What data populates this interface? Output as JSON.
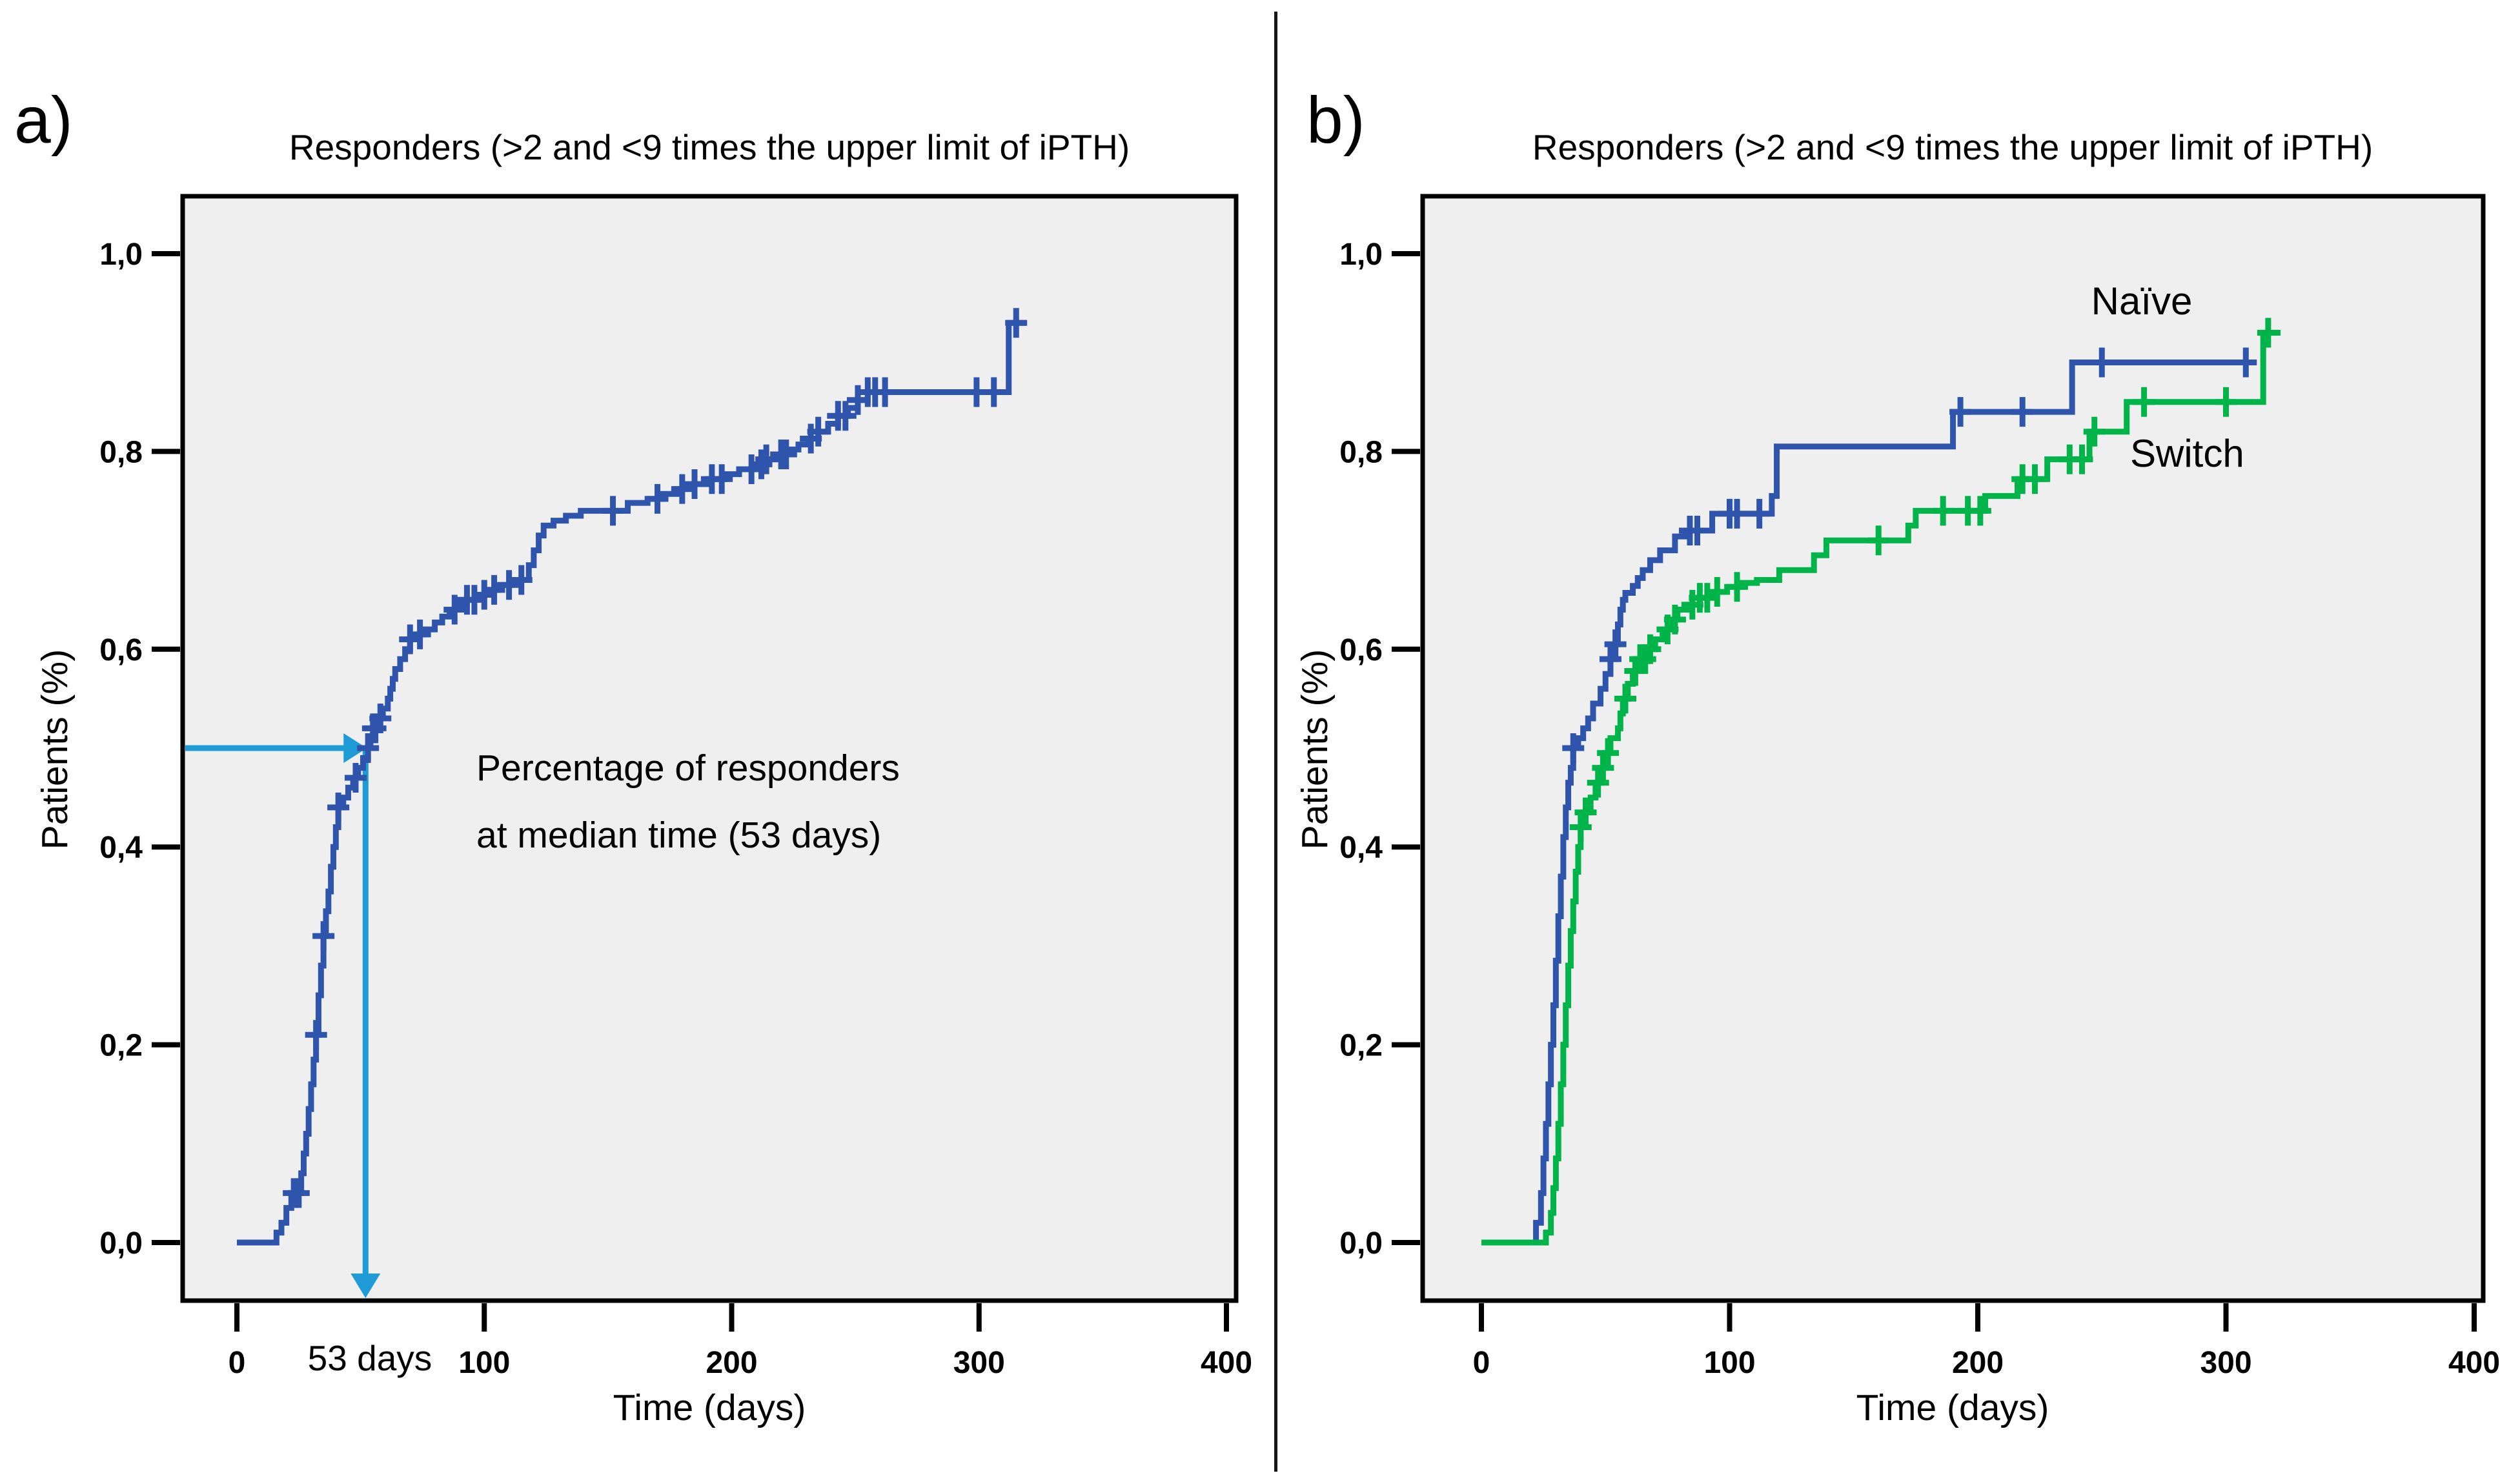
{
  "chart_data": [
    {
      "panel_label": "a)",
      "type": "line",
      "subtype": "kaplan-meier-cumulative-step",
      "title": "Responders (>2 and <9 times the upper limit of iPTH)",
      "xlabel": "Time (days)",
      "ylabel": "Patients (%)",
      "xlim": [
        0,
        400
      ],
      "ylim": [
        0.0,
        1.0
      ],
      "x_tick_values": [
        0,
        100,
        200,
        300,
        400
      ],
      "x_tick_labels": [
        "0",
        "100",
        "200",
        "300",
        "400"
      ],
      "y_tick_values": [
        0.0,
        0.2,
        0.4,
        0.6,
        0.8,
        1.0
      ],
      "y_tick_labels": [
        "0,0",
        "0,2",
        "0,4",
        "0,6",
        "0,8",
        "1,0"
      ],
      "grid": false,
      "legend_position": "none",
      "plot_bg": "#EFEFEF",
      "box_color": "#000000",
      "series": [
        {
          "id": "responders",
          "color": "#2E55AB",
          "steps": [
            [
              0,
              0
            ],
            [
              16,
              0.01
            ],
            [
              18,
              0.02
            ],
            [
              20,
              0.035
            ],
            [
              22,
              0.05
            ],
            [
              26,
              0.07
            ],
            [
              27,
              0.09
            ],
            [
              28,
              0.11
            ],
            [
              29,
              0.135
            ],
            [
              30,
              0.16
            ],
            [
              31,
              0.185
            ],
            [
              32,
              0.21
            ],
            [
              33,
              0.25
            ],
            [
              34,
              0.28
            ],
            [
              35,
              0.31
            ],
            [
              36,
              0.335
            ],
            [
              37,
              0.355
            ],
            [
              38,
              0.38
            ],
            [
              39,
              0.4
            ],
            [
              40,
              0.42
            ],
            [
              41,
              0.44
            ],
            [
              43,
              0.45
            ],
            [
              45,
              0.46
            ],
            [
              47,
              0.47
            ],
            [
              49,
              0.48
            ],
            [
              51,
              0.49
            ],
            [
              53,
              0.5
            ],
            [
              54,
              0.51
            ],
            [
              55,
              0.52
            ],
            [
              57,
              0.53
            ],
            [
              59,
              0.54
            ],
            [
              61,
              0.55
            ],
            [
              62,
              0.56
            ],
            [
              63,
              0.57
            ],
            [
              64,
              0.58
            ],
            [
              66,
              0.59
            ],
            [
              68,
              0.6
            ],
            [
              70,
              0.61
            ],
            [
              73,
              0.615
            ],
            [
              76,
              0.62
            ],
            [
              80,
              0.627
            ],
            [
              83,
              0.633
            ],
            [
              86,
              0.64
            ],
            [
              89,
              0.645
            ],
            [
              93,
              0.65
            ],
            [
              97,
              0.655
            ],
            [
              101,
              0.66
            ],
            [
              106,
              0.665
            ],
            [
              111,
              0.67
            ],
            [
              118,
              0.685
            ],
            [
              120,
              0.7
            ],
            [
              122,
              0.715
            ],
            [
              124,
              0.725
            ],
            [
              128,
              0.73
            ],
            [
              133,
              0.735
            ],
            [
              139,
              0.74
            ],
            [
              158,
              0.748
            ],
            [
              166,
              0.752
            ],
            [
              172,
              0.757
            ],
            [
              178,
              0.762
            ],
            [
              184,
              0.767
            ],
            [
              190,
              0.772
            ],
            [
              197,
              0.777
            ],
            [
              203,
              0.782
            ],
            [
              209,
              0.787
            ],
            [
              214,
              0.792
            ],
            [
              219,
              0.797
            ],
            [
              223,
              0.802
            ],
            [
              227,
              0.807
            ],
            [
              231,
              0.813
            ],
            [
              235,
              0.82
            ],
            [
              239,
              0.828
            ],
            [
              243,
              0.836
            ],
            [
              247,
              0.844
            ],
            [
              251,
              0.852
            ],
            [
              255,
              0.86
            ],
            [
              312,
              0.93
            ],
            [
              319,
              0.93
            ]
          ],
          "censor_days": [
            23,
            25,
            32,
            35,
            41,
            48,
            53,
            55,
            56,
            58,
            70,
            74,
            88,
            93,
            96,
            100,
            104,
            110,
            115,
            152,
            170,
            180,
            185,
            192,
            196,
            208,
            212,
            214,
            220,
            222,
            232,
            235,
            243,
            246,
            251,
            255,
            258,
            262,
            299,
            306,
            315
          ]
        }
      ],
      "annotation": {
        "line1": "Percentage of responders",
        "line2": "at median time (53 days)",
        "x_label": "53 days",
        "median_days": 53,
        "level": 0.5,
        "arrow_color": "#1F9CD8"
      }
    },
    {
      "panel_label": "b)",
      "type": "line",
      "subtype": "kaplan-meier-cumulative-step",
      "title": "Responders (>2 and <9 times the upper limit of iPTH)",
      "xlabel": "Time (days)",
      "ylabel": "Patients (%)",
      "xlim": [
        0,
        400
      ],
      "ylim": [
        0.0,
        1.0
      ],
      "x_tick_values": [
        0,
        100,
        200,
        300,
        400
      ],
      "x_tick_labels": [
        "0",
        "100",
        "200",
        "300",
        "400"
      ],
      "y_tick_values": [
        0.0,
        0.2,
        0.4,
        0.6,
        0.8,
        1.0
      ],
      "y_tick_labels": [
        "0,0",
        "0,2",
        "0,4",
        "0,6",
        "0,8",
        "1,0"
      ],
      "grid": false,
      "legend_position": "inline-labels",
      "plot_bg": "#EFEFEF",
      "box_color": "#000000",
      "series": [
        {
          "id": "naive",
          "name": "Naïve",
          "color": "#2E55AB",
          "steps": [
            [
              14,
              0
            ],
            [
              22,
              0.02
            ],
            [
              24,
              0.05
            ],
            [
              25,
              0.085
            ],
            [
              26,
              0.12
            ],
            [
              27,
              0.16
            ],
            [
              28,
              0.2
            ],
            [
              29,
              0.24
            ],
            [
              30,
              0.285
            ],
            [
              31,
              0.33
            ],
            [
              32,
              0.37
            ],
            [
              33,
              0.41
            ],
            [
              34,
              0.44
            ],
            [
              35,
              0.465
            ],
            [
              36,
              0.48
            ],
            [
              37,
              0.5
            ],
            [
              39,
              0.51
            ],
            [
              41,
              0.52
            ],
            [
              43,
              0.53
            ],
            [
              45,
              0.545
            ],
            [
              48,
              0.56
            ],
            [
              50,
              0.575
            ],
            [
              52,
              0.59
            ],
            [
              54,
              0.605
            ],
            [
              55,
              0.625
            ],
            [
              56,
              0.64
            ],
            [
              57,
              0.65
            ],
            [
              58,
              0.657
            ],
            [
              61,
              0.664
            ],
            [
              63,
              0.672
            ],
            [
              65,
              0.68
            ],
            [
              68,
              0.69
            ],
            [
              72,
              0.7
            ],
            [
              78,
              0.714
            ],
            [
              82,
              0.72
            ],
            [
              93,
              0.737
            ],
            [
              117,
              0.755
            ],
            [
              119,
              0.805
            ],
            [
              190,
              0.84
            ],
            [
              238,
              0.89
            ],
            [
              311,
              0.89
            ]
          ],
          "censor_days": [
            37,
            52,
            54,
            84,
            87,
            100,
            103,
            112,
            193,
            218,
            250,
            308
          ]
        },
        {
          "id": "switch",
          "name": "Switch",
          "color": "#00B44A",
          "steps": [
            [
              0,
              0
            ],
            [
              26,
              0.01
            ],
            [
              28,
              0.03
            ],
            [
              29,
              0.055
            ],
            [
              30,
              0.085
            ],
            [
              31,
              0.12
            ],
            [
              32,
              0.16
            ],
            [
              33,
              0.2
            ],
            [
              34,
              0.24
            ],
            [
              35,
              0.28
            ],
            [
              36,
              0.315
            ],
            [
              37,
              0.345
            ],
            [
              38,
              0.375
            ],
            [
              39,
              0.4
            ],
            [
              40,
              0.42
            ],
            [
              42,
              0.435
            ],
            [
              44,
              0.45
            ],
            [
              46,
              0.465
            ],
            [
              48,
              0.48
            ],
            [
              50,
              0.495
            ],
            [
              52,
              0.51
            ],
            [
              55,
              0.52
            ],
            [
              56,
              0.535
            ],
            [
              57,
              0.55
            ],
            [
              59,
              0.565
            ],
            [
              61,
              0.578
            ],
            [
              64,
              0.59
            ],
            [
              67,
              0.6
            ],
            [
              70,
              0.61
            ],
            [
              73,
              0.62
            ],
            [
              76,
              0.63
            ],
            [
              79,
              0.64
            ],
            [
              83,
              0.645
            ],
            [
              88,
              0.652
            ],
            [
              93,
              0.658
            ],
            [
              99,
              0.663
            ],
            [
              105,
              0.667
            ],
            [
              111,
              0.67
            ],
            [
              120,
              0.68
            ],
            [
              134,
              0.695
            ],
            [
              139,
              0.71
            ],
            [
              172,
              0.725
            ],
            [
              175,
              0.74
            ],
            [
              203,
              0.755
            ],
            [
              216,
              0.772
            ],
            [
              228,
              0.792
            ],
            [
              245,
              0.82
            ],
            [
              260,
              0.85
            ],
            [
              315,
              0.92
            ],
            [
              322,
              0.92
            ]
          ],
          "censor_days": [
            40,
            42,
            47,
            49,
            51,
            58,
            62,
            64,
            66,
            68,
            75,
            78,
            85,
            88,
            91,
            95,
            103,
            160,
            186,
            196,
            201,
            218,
            223,
            237,
            242,
            247,
            267,
            300,
            317
          ]
        }
      ]
    }
  ]
}
